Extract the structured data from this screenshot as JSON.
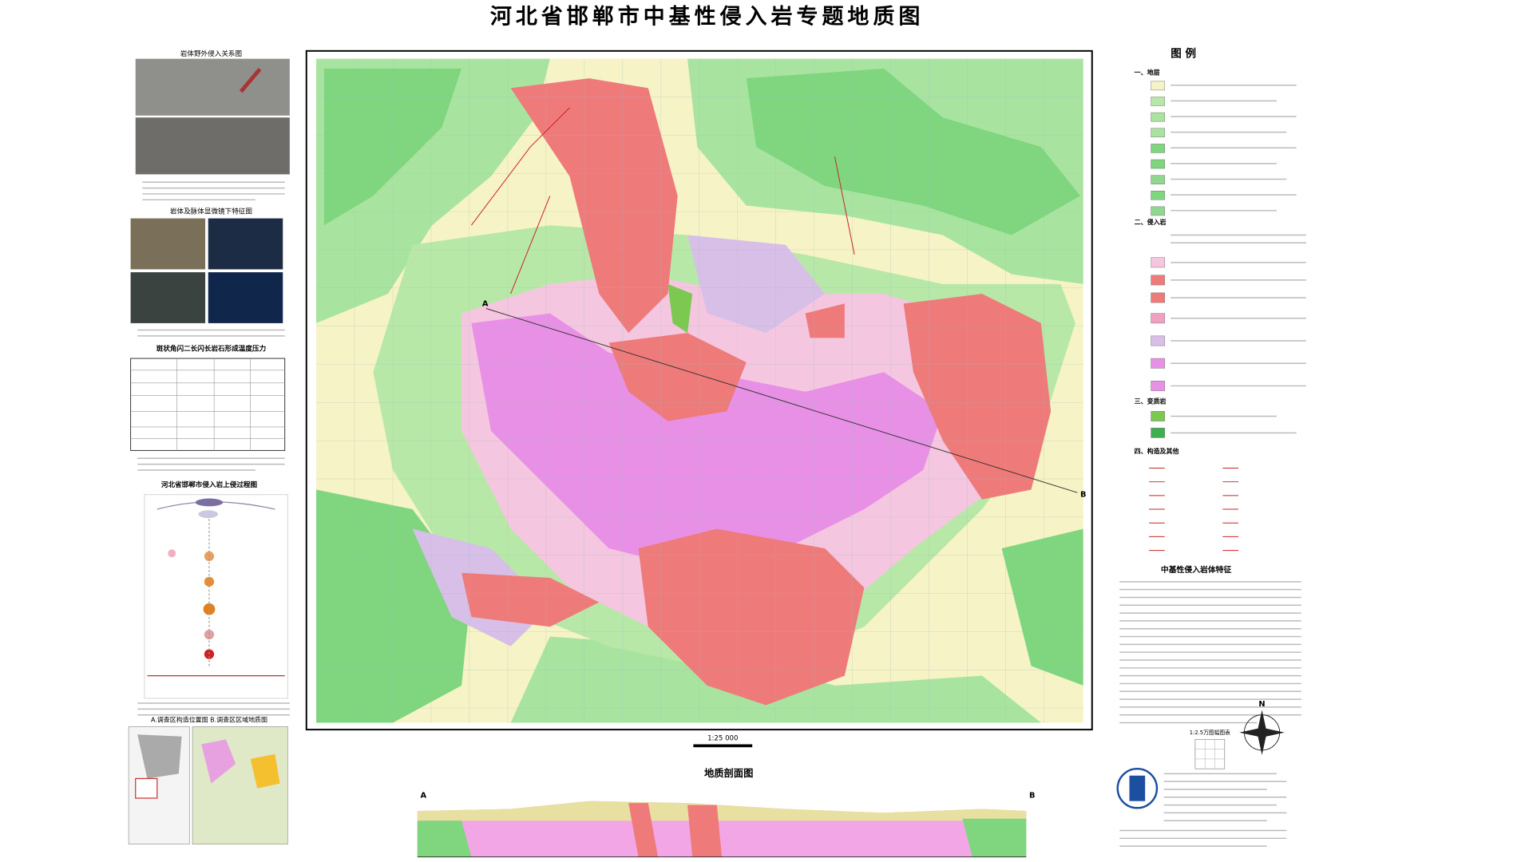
{
  "header": {
    "title": "河北省邯郸市中基性侵入岩专题地质图"
  },
  "left_panel": {
    "photo_title": "岩体野外侵入关系图",
    "micro_title": "岩体及脉体显微镜下特征图",
    "table_title": "斑状角闪二长闪长岩石形成温度压力",
    "process_title": "河北省邯郸市侵入岩上侵过程图",
    "maps_title": "A.调查区构造位置图 B.调查区区域地质图"
  },
  "map": {
    "section_line": [
      "A",
      "B"
    ],
    "scale": "1:25 000",
    "compass": "N"
  },
  "legend": {
    "title": "图 例",
    "sections": [
      "一、地层",
      "二、侵入岩",
      "三、变质岩",
      "四、构造及其他"
    ]
  },
  "features": {
    "title": "中基性侵入岩体特征",
    "index_title": "1:2.5万图幅图表"
  },
  "section": {
    "title": "地质剖面图",
    "ends": [
      "A",
      "B"
    ]
  }
}
